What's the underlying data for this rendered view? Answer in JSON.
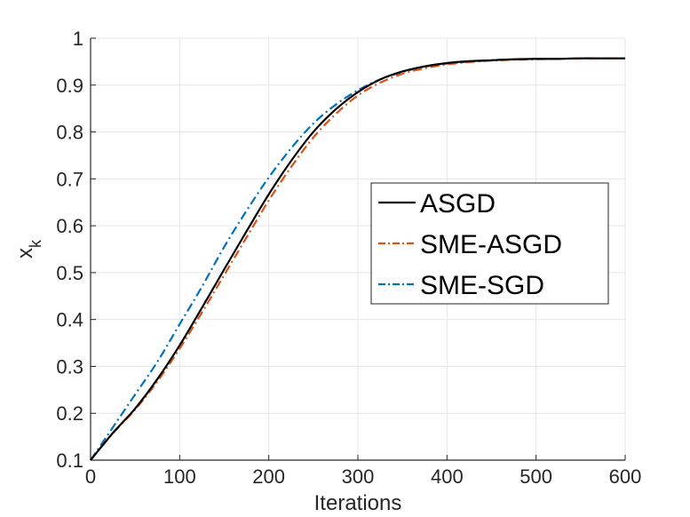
{
  "chart_data": {
    "type": "line",
    "xlabel": "Iterations",
    "ylabel": "x",
    "ylabel_subscript": "k",
    "xlim": [
      0,
      600
    ],
    "ylim": [
      0.1,
      1
    ],
    "xticks": [
      "0",
      "100",
      "200",
      "300",
      "400",
      "500",
      "600"
    ],
    "yticks": [
      "0.1",
      "0.2",
      "0.3",
      "0.4",
      "0.5",
      "0.6",
      "0.7",
      "0.8",
      "0.9",
      "1"
    ],
    "grid": true,
    "legend_position": "right-middle",
    "x": [
      0,
      25,
      50,
      75,
      100,
      125,
      150,
      175,
      200,
      225,
      250,
      275,
      300,
      325,
      350,
      375,
      400,
      425,
      450,
      475,
      500,
      525,
      550,
      575,
      600
    ],
    "series": [
      {
        "name": "ASGD",
        "color": "#000000",
        "dash": "solid",
        "values": [
          0.1,
          0.158,
          0.21,
          0.273,
          0.345,
          0.425,
          0.507,
          0.588,
          0.667,
          0.738,
          0.8,
          0.848,
          0.885,
          0.912,
          0.929,
          0.94,
          0.947,
          0.951,
          0.953,
          0.955,
          0.956,
          0.956,
          0.957,
          0.957,
          0.957
        ]
      },
      {
        "name": "SME-ASGD",
        "color": "#d95319",
        "dash": "dashdot",
        "values": [
          0.1,
          0.157,
          0.208,
          0.268,
          0.338,
          0.415,
          0.495,
          0.575,
          0.654,
          0.725,
          0.788,
          0.838,
          0.878,
          0.905,
          0.924,
          0.936,
          0.944,
          0.949,
          0.952,
          0.954,
          0.955,
          0.956,
          0.957,
          0.957,
          0.957
        ]
      },
      {
        "name": "SME-SGD",
        "color": "#0072bd",
        "dash": "dashdot",
        "values": [
          0.1,
          0.17,
          0.24,
          0.31,
          0.39,
          0.47,
          0.555,
          0.632,
          0.703,
          0.765,
          0.818,
          0.858,
          0.889,
          0.912,
          0.928,
          0.939,
          0.946,
          0.95,
          0.953,
          0.955,
          0.956,
          0.956,
          0.957,
          0.957,
          0.957
        ]
      }
    ]
  }
}
